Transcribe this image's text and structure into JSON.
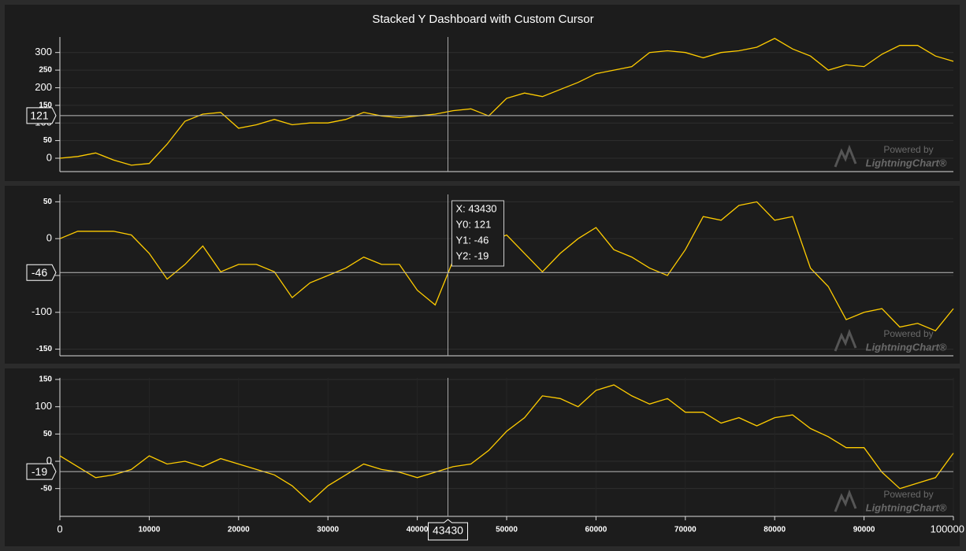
{
  "chart_data": [
    {
      "type": "line",
      "title": "Stacked Y Dashboard with Custom Cursor",
      "x": [
        0,
        2000,
        4000,
        6000,
        8000,
        10000,
        12000,
        14000,
        16000,
        18000,
        20000,
        22000,
        24000,
        26000,
        28000,
        30000,
        32000,
        34000,
        36000,
        38000,
        40000,
        42000,
        44000,
        46000,
        48000,
        50000,
        52000,
        54000,
        56000,
        58000,
        60000,
        62000,
        64000,
        66000,
        68000,
        70000,
        72000,
        74000,
        76000,
        78000,
        80000,
        82000,
        84000,
        86000,
        88000,
        90000,
        92000,
        94000,
        96000,
        98000,
        100000
      ],
      "series": [
        {
          "color": "#ffcc00",
          "values": [
            0,
            5,
            15,
            -5,
            -20,
            -15,
            40,
            105,
            125,
            130,
            85,
            95,
            110,
            95,
            100,
            100,
            110,
            130,
            120,
            115,
            120,
            125,
            135,
            140,
            120,
            170,
            185,
            175,
            195,
            215,
            240,
            250,
            260,
            300,
            305,
            300,
            285,
            300,
            305,
            315,
            340,
            310,
            290,
            250,
            265,
            260,
            295,
            320,
            320,
            290,
            275
          ]
        }
      ],
      "xlim": [
        0,
        100000
      ],
      "ylim": [
        -38,
        344
      ],
      "yticks": [
        0,
        50,
        100,
        150,
        200,
        250,
        300
      ],
      "grid": true
    },
    {
      "type": "line",
      "x": [
        0,
        2000,
        4000,
        6000,
        8000,
        10000,
        12000,
        14000,
        16000,
        18000,
        20000,
        22000,
        24000,
        26000,
        28000,
        30000,
        32000,
        34000,
        36000,
        38000,
        40000,
        42000,
        44000,
        46000,
        48000,
        50000,
        52000,
        54000,
        56000,
        58000,
        60000,
        62000,
        64000,
        66000,
        68000,
        70000,
        72000,
        74000,
        76000,
        78000,
        80000,
        82000,
        84000,
        86000,
        88000,
        90000,
        92000,
        94000,
        96000,
        98000,
        100000
      ],
      "series": [
        {
          "color": "#ffcc00",
          "values": [
            0,
            10,
            10,
            10,
            5,
            -20,
            -55,
            -35,
            -10,
            -45,
            -35,
            -35,
            -45,
            -80,
            -60,
            -50,
            -40,
            -25,
            -35,
            -35,
            -70,
            -90,
            -30,
            -10,
            -5,
            5,
            -20,
            -45,
            -20,
            0,
            15,
            -15,
            -25,
            -40,
            -50,
            -15,
            30,
            25,
            45,
            50,
            25,
            30,
            -40,
            -65,
            -110,
            -100,
            -95,
            -120,
            -115,
            -125,
            -95
          ]
        }
      ],
      "xlim": [
        0,
        100000
      ],
      "ylim": [
        -159,
        60
      ],
      "yticks": [
        -150,
        -100,
        -50,
        0,
        50
      ],
      "grid": true
    },
    {
      "type": "line",
      "x": [
        0,
        2000,
        4000,
        6000,
        8000,
        10000,
        12000,
        14000,
        16000,
        18000,
        20000,
        22000,
        24000,
        26000,
        28000,
        30000,
        32000,
        34000,
        36000,
        38000,
        40000,
        42000,
        44000,
        46000,
        48000,
        50000,
        52000,
        54000,
        56000,
        58000,
        60000,
        62000,
        64000,
        66000,
        68000,
        70000,
        72000,
        74000,
        76000,
        78000,
        80000,
        82000,
        84000,
        86000,
        88000,
        90000,
        92000,
        94000,
        96000,
        98000,
        100000
      ],
      "series": [
        {
          "color": "#ffcc00",
          "values": [
            10,
            -10,
            -30,
            -25,
            -15,
            10,
            -5,
            0,
            -10,
            5,
            -5,
            -15,
            -25,
            -45,
            -75,
            -45,
            -25,
            -5,
            -15,
            -20,
            -30,
            -20,
            -10,
            -5,
            20,
            55,
            80,
            120,
            115,
            100,
            130,
            140,
            120,
            105,
            115,
            90,
            90,
            70,
            80,
            65,
            80,
            85,
            60,
            45,
            25,
            25,
            -20,
            -50,
            -40,
            -30,
            15
          ]
        }
      ],
      "xlim": [
        0,
        100000
      ],
      "xticks": [
        0,
        10000,
        20000,
        30000,
        40000,
        50000,
        60000,
        70000,
        80000,
        90000,
        100000
      ],
      "ylim": [
        -101,
        153
      ],
      "yticks": [
        -50,
        0,
        50,
        100,
        150
      ],
      "grid": true
    }
  ],
  "cursor": {
    "x": 43430,
    "values": [
      121,
      -46,
      -19
    ],
    "tooltip": [
      "X: 43430",
      "Y0: 121",
      "Y1: -46",
      "Y2: -19"
    ]
  },
  "watermark": [
    "Powered by",
    "LightningChart®"
  ]
}
